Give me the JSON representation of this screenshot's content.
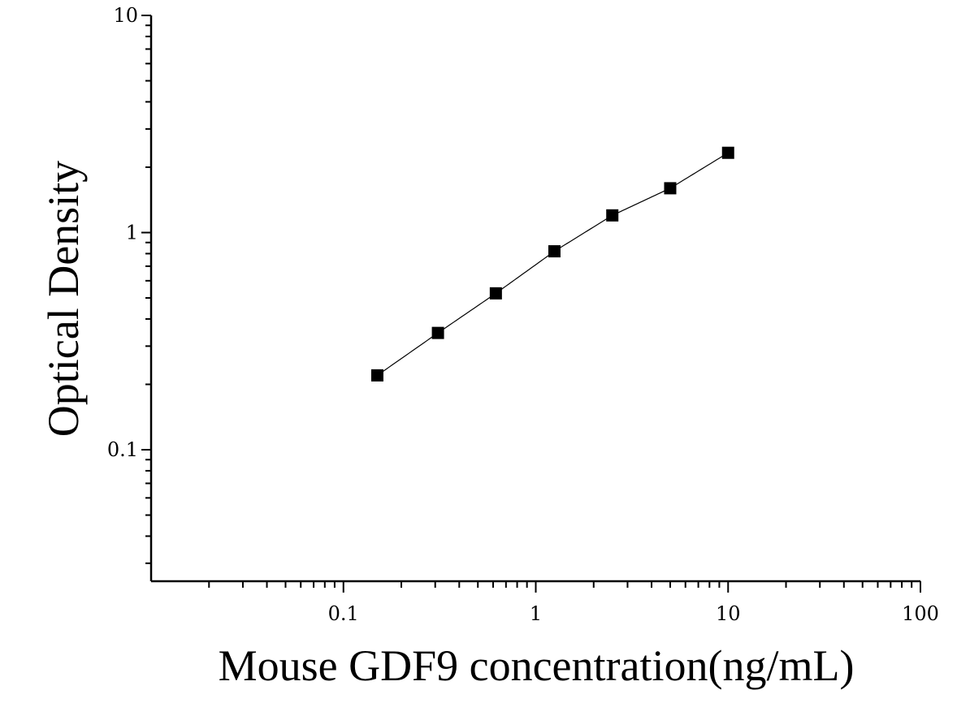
{
  "chart_data": {
    "type": "scatter",
    "xlabel": "Mouse GDF9 concentration(ng/mL)",
    "ylabel": "Optical Density",
    "xscale": "log",
    "yscale": "log",
    "xlim": [
      0.01,
      100
    ],
    "ylim": [
      0.02,
      10
    ],
    "x_tick_labels": [
      {
        "value": 0.1,
        "label": "0.1"
      },
      {
        "value": 1,
        "label": "1"
      },
      {
        "value": 10,
        "label": "10"
      },
      {
        "value": 100,
        "label": "100"
      }
    ],
    "y_tick_labels": [
      {
        "value": 0.1,
        "label": "0.1"
      },
      {
        "value": 1,
        "label": "1"
      },
      {
        "value": 10,
        "label": "10"
      }
    ],
    "series": [
      {
        "x": [
          0.15,
          0.31,
          0.62,
          1.25,
          2.5,
          5,
          10
        ],
        "y": [
          0.22,
          0.345,
          0.525,
          0.82,
          1.2,
          1.6,
          2.33
        ],
        "marker": "square",
        "line": "fitted curve",
        "color": "#000000"
      }
    ],
    "grid": false,
    "legend": "none"
  }
}
